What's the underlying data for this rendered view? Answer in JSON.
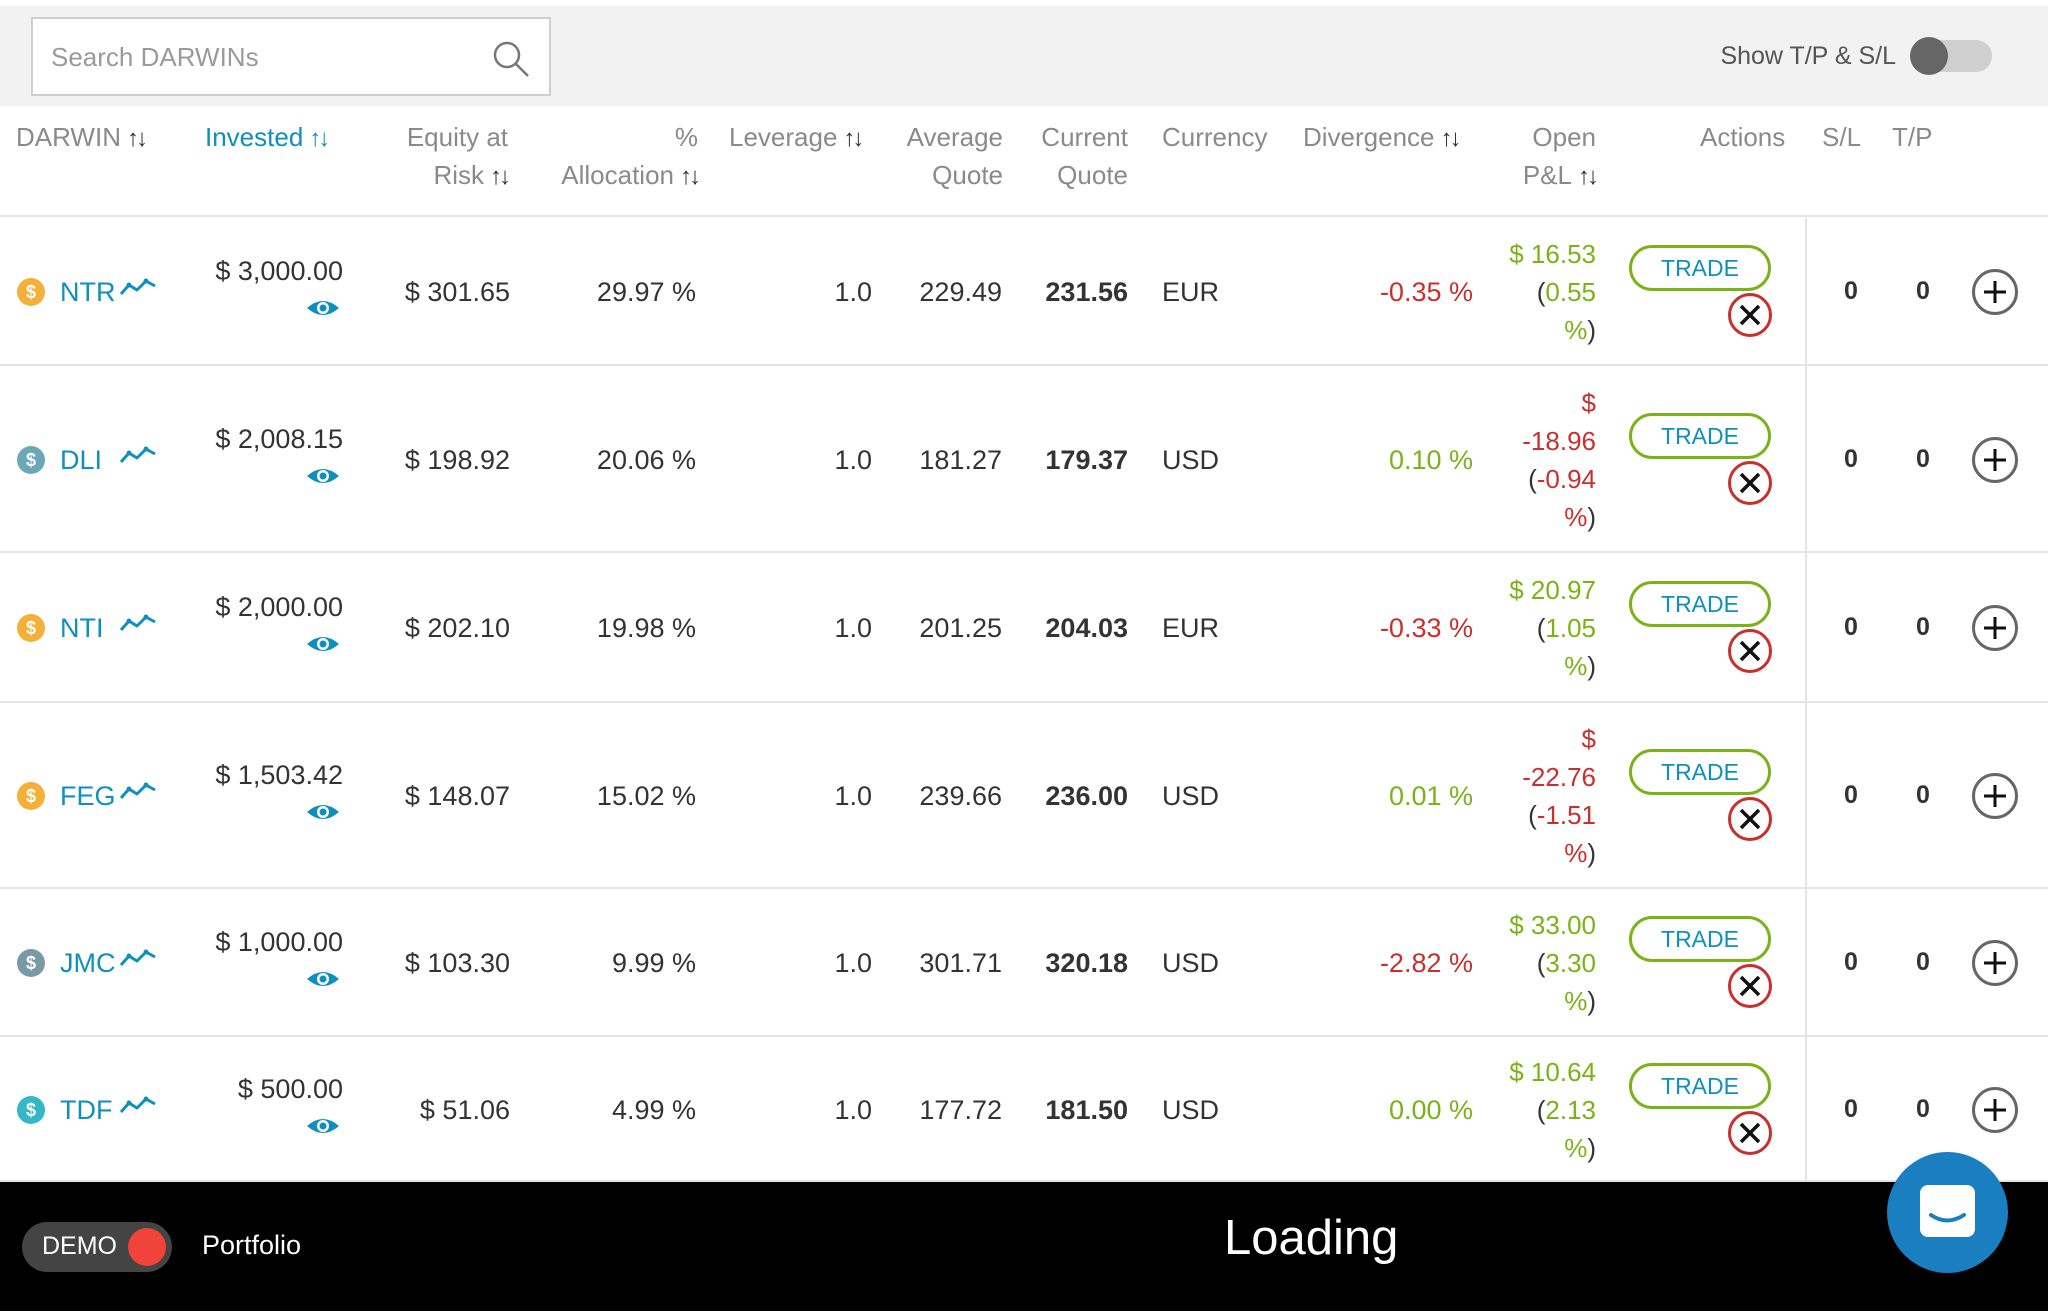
{
  "search": {
    "placeholder": "Search DARWINs"
  },
  "toggle_tpsl": {
    "label": "Show T/P & S/L",
    "on": false
  },
  "columns": {
    "darwin": "DARWIN",
    "invested": "Invested",
    "equity_1": "Equity at",
    "equity_2": "Risk",
    "alloc_1": "%",
    "alloc_2": "Allocation",
    "leverage": "Leverage",
    "avg_1": "Average",
    "avg_2": "Quote",
    "cur_1": "Current",
    "cur_2": "Quote",
    "currency": "Currency",
    "divergence": "Divergence",
    "pnl_1": "Open",
    "pnl_2": "P&L",
    "actions": "Actions",
    "sl": "S/L",
    "tp": "T/P",
    "sort_glyph": "↑↓"
  },
  "coin_symbol": "$",
  "trade_label": "TRADE",
  "rows": [
    {
      "name": "NTR",
      "coin": "orange",
      "invested": "$ 3,000.00",
      "equity": "$ 301.65",
      "alloc": "29.97 %",
      "leverage": "1.0",
      "avg": "229.49",
      "cur": "231.56",
      "currency": "EUR",
      "divergence": "-0.35 %",
      "div_sign": "neg",
      "pnl_sign": "pos",
      "pnl_lines": [
        "$ 16.53",
        "(0.55",
        "%)"
      ],
      "sl": "0",
      "tp": "0"
    },
    {
      "name": "DLI",
      "coin": "teal",
      "invested": "$ 2,008.15",
      "equity": "$ 198.92",
      "alloc": "20.06 %",
      "leverage": "1.0",
      "avg": "181.27",
      "cur": "179.37",
      "currency": "USD",
      "divergence": "0.10 %",
      "div_sign": "pos",
      "pnl_sign": "neg",
      "pnl_lines": [
        "$",
        "-18.96",
        "(-0.94",
        "%)"
      ],
      "sl": "0",
      "tp": "0"
    },
    {
      "name": "NTI",
      "coin": "orange",
      "invested": "$ 2,000.00",
      "equity": "$ 202.10",
      "alloc": "19.98 %",
      "leverage": "1.0",
      "avg": "201.25",
      "cur": "204.03",
      "currency": "EUR",
      "divergence": "-0.33 %",
      "div_sign": "neg",
      "pnl_sign": "pos",
      "pnl_lines": [
        "$ 20.97",
        "(1.05",
        "%)"
      ],
      "sl": "0",
      "tp": "0"
    },
    {
      "name": "FEG",
      "coin": "orange",
      "invested": "$ 1,503.42",
      "equity": "$ 148.07",
      "alloc": "15.02 %",
      "leverage": "1.0",
      "avg": "239.66",
      "cur": "236.00",
      "currency": "USD",
      "divergence": "0.01 %",
      "div_sign": "pos",
      "pnl_sign": "neg",
      "pnl_lines": [
        "$",
        "-22.76",
        "(-1.51",
        "%)"
      ],
      "sl": "0",
      "tp": "0"
    },
    {
      "name": "JMC",
      "coin": "slate",
      "invested": "$ 1,000.00",
      "equity": "$ 103.30",
      "alloc": "9.99 %",
      "leverage": "1.0",
      "avg": "301.71",
      "cur": "320.18",
      "currency": "USD",
      "divergence": "-2.82 %",
      "div_sign": "neg",
      "pnl_sign": "pos",
      "pnl_lines": [
        "$ 33.00",
        "(3.30",
        "%)"
      ],
      "sl": "0",
      "tp": "0"
    },
    {
      "name": "TDF",
      "coin": "cyan",
      "invested": "$ 500.00",
      "equity": "$ 51.06",
      "alloc": "4.99 %",
      "leverage": "1.0",
      "avg": "177.72",
      "cur": "181.50",
      "currency": "USD",
      "divergence": "0.00 %",
      "div_sign": "pos",
      "pnl_sign": "pos",
      "pnl_lines": [
        "$ 10.64",
        "(2.13",
        "%)"
      ],
      "sl": "0",
      "tp": "0"
    }
  ],
  "footer": {
    "demo_label": "DEMO",
    "portfolio": "Portfolio",
    "status": "Loading"
  },
  "colors": {
    "accent": "#0f8fbd",
    "positive": "#7ab317",
    "negative": "#c8302e"
  }
}
